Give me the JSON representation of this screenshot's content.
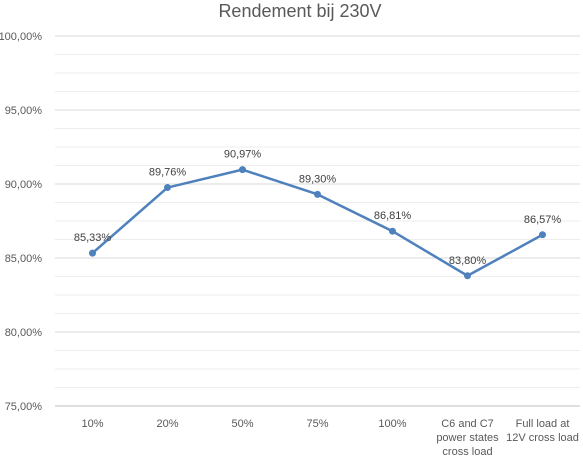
{
  "chart_data": {
    "type": "line",
    "title": "Rendement bij 230V",
    "categories": [
      [
        "10%"
      ],
      [
        "20%"
      ],
      [
        "50%"
      ],
      [
        "75%"
      ],
      [
        "100%"
      ],
      [
        "C6 and C7",
        "power states",
        "cross load"
      ],
      [
        "Full load at",
        "12V cross load"
      ]
    ],
    "series": [
      {
        "values": [
          85.33,
          89.76,
          90.97,
          89.3,
          86.81,
          83.8,
          86.57
        ],
        "labels": [
          "85,33%",
          "89,76%",
          "90,97%",
          "89,30%",
          "86,81%",
          "83,80%",
          "86,57%"
        ],
        "color": "#4f81bd"
      }
    ],
    "ylim": [
      75,
      100
    ],
    "yticks": [
      "75,00%",
      "80,00%",
      "85,00%",
      "90,00%",
      "95,00%",
      "100,00%"
    ],
    "xlabel": "",
    "ylabel": "",
    "grid": true,
    "legend": "none"
  }
}
